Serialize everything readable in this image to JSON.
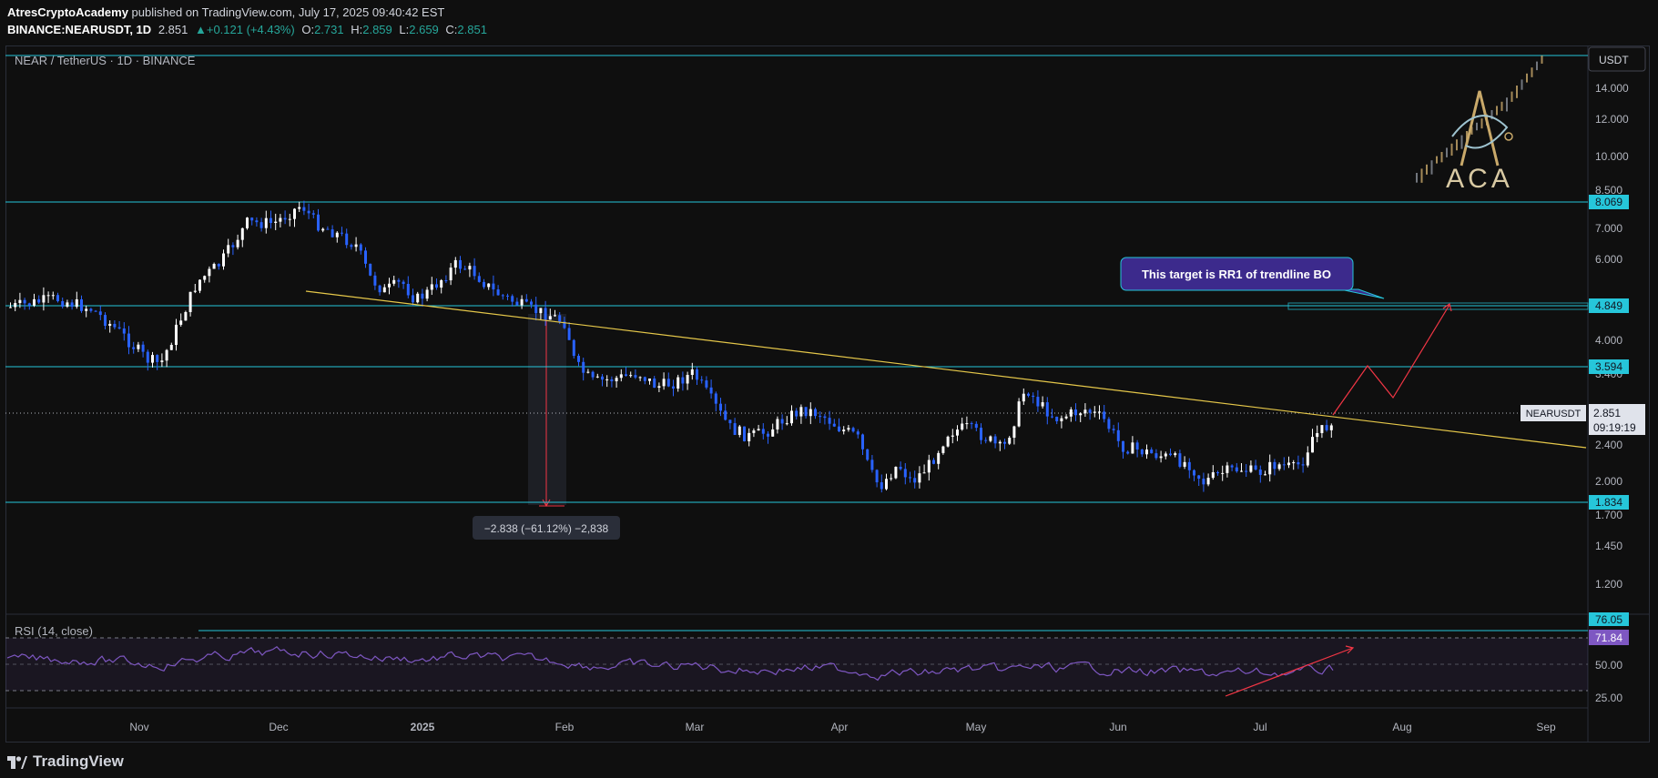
{
  "header": {
    "author": "AtresCryptoAcademy",
    "published_text": " published on TradingView.com, July 17, 2025 09:40:42 EST",
    "symbol": "BINANCE:NEARUSDT, 1D",
    "last": "2.851",
    "change": "▲+0.121 (+4.43%)",
    "o_label": "O:",
    "o_value": "2.731",
    "h_label": "H:",
    "h_value": "2.859",
    "l_label": "L:",
    "l_value": "2.659",
    "c_label": "C:",
    "c_value": "2.851"
  },
  "chart": {
    "pane_title": "NEAR / TetherUS · 1D · BINANCE",
    "currency": "USDT",
    "price_scale_labels": [
      "14.000",
      "12.000",
      "10.000",
      "8.500",
      "7.000",
      "6.000",
      "4.000",
      "3.400",
      "2.400",
      "2.000",
      "1.700",
      "1.450",
      "1.200"
    ],
    "levels": [
      {
        "value": "8.069"
      },
      {
        "value": "4.849"
      },
      {
        "value": "3.594"
      },
      {
        "value": "1.834"
      }
    ],
    "current_symbol": "NEARUSDT",
    "current_price": "2.851",
    "countdown": "09:19:19",
    "callout": "This target is RR1 of trendline BO",
    "measure_label": "−2.838 (−61.12%) −2,838",
    "logo_text": "ACA"
  },
  "rsi": {
    "title": "RSI (14, close)",
    "scale_labels": [
      "50.00",
      "25.00"
    ],
    "tag_upper": "76.05",
    "tag_value": "71.84"
  },
  "time_axis": [
    "Nov",
    "Dec",
    "2025",
    "Feb",
    "Mar",
    "Apr",
    "May",
    "Jun",
    "Jul",
    "Aug",
    "Sep"
  ],
  "footer": {
    "brand": "TradingView"
  },
  "colors": {
    "bg": "#0f0f0f",
    "bull": "#ffffff",
    "bear": "#2962ff",
    "level": "#26c6da",
    "trend": "#e6c84a",
    "projection": "#f23645",
    "rsi": "#7e57c2",
    "callout": "#3c2a8c"
  }
}
